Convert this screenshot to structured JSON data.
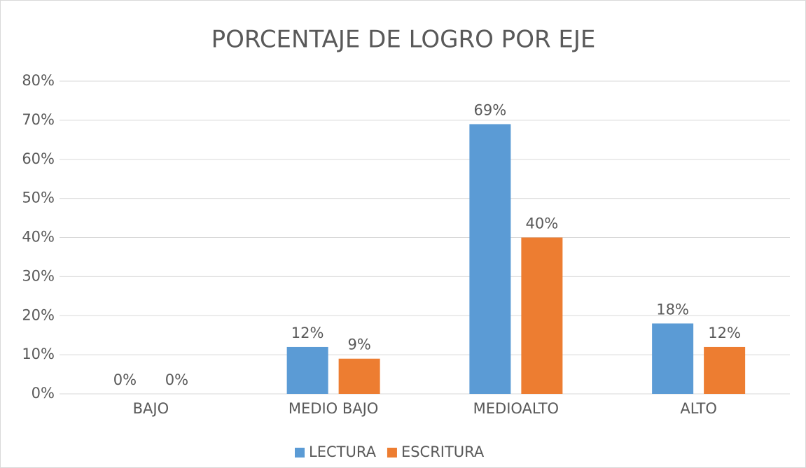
{
  "chart_data": {
    "type": "bar",
    "title": "PORCENTAJE DE LOGRO POR EJE",
    "categories": [
      "BAJO",
      "MEDIO BAJO",
      "MEDIOALTO",
      "ALTO"
    ],
    "series": [
      {
        "name": "LECTURA",
        "color": "#5b9bd5",
        "values": [
          0,
          12,
          69,
          18
        ],
        "value_labels": [
          "0%",
          "12%",
          "69%",
          "18%"
        ]
      },
      {
        "name": "ESCRITURA",
        "color": "#ed7d31",
        "values": [
          0,
          9,
          40,
          12
        ],
        "value_labels": [
          "0%",
          "9%",
          "40%",
          "12%"
        ]
      }
    ],
    "ylim": [
      0,
      80
    ],
    "yticks": [
      {
        "value": 0,
        "label": "0%"
      },
      {
        "value": 10,
        "label": "10%"
      },
      {
        "value": 20,
        "label": "20%"
      },
      {
        "value": 30,
        "label": "30%"
      },
      {
        "value": 40,
        "label": "40%"
      },
      {
        "value": 50,
        "label": "50%"
      },
      {
        "value": 60,
        "label": "60%"
      },
      {
        "value": 70,
        "label": "70%"
      },
      {
        "value": 80,
        "label": "80%"
      }
    ],
    "grid": true,
    "legend": "bottom"
  }
}
